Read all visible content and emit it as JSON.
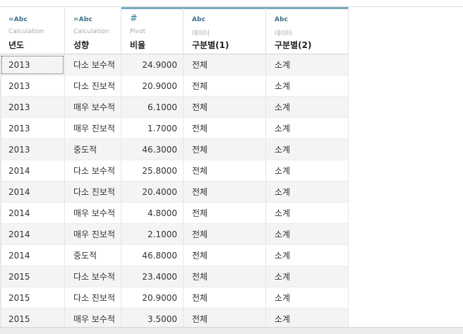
{
  "columns": [
    {
      "type": "=Abc",
      "source": "Calculation",
      "name": "년도"
    },
    {
      "type": "=Abc",
      "source": "Calculation",
      "name": "성향"
    },
    {
      "type": "#",
      "source": "Pivot",
      "name": "비율"
    },
    {
      "type": "Abc",
      "source": "데이터",
      "name": "구분별(1)"
    },
    {
      "type": "Abc",
      "source": "데이터",
      "name": "구분별(2)"
    }
  ],
  "rows": [
    [
      "2013",
      "다소 보수적",
      "24.9000",
      "전체",
      "소계"
    ],
    [
      "2013",
      "다소 진보적",
      "20.9000",
      "전체",
      "소계"
    ],
    [
      "2013",
      "매우 보수적",
      "6.1000",
      "전체",
      "소계"
    ],
    [
      "2013",
      "매우 진보적",
      "1.7000",
      "전체",
      "소계"
    ],
    [
      "2013",
      "중도적",
      "46.3000",
      "전체",
      "소계"
    ],
    [
      "2014",
      "다소 보수적",
      "25.8000",
      "전체",
      "소계"
    ],
    [
      "2014",
      "다소 진보적",
      "20.4000",
      "전체",
      "소계"
    ],
    [
      "2014",
      "매우 보수적",
      "4.8000",
      "전체",
      "소계"
    ],
    [
      "2014",
      "매우 진보적",
      "2.1000",
      "전체",
      "소계"
    ],
    [
      "2014",
      "중도적",
      "46.8000",
      "전체",
      "소계"
    ],
    [
      "2015",
      "다소 보수적",
      "23.4000",
      "전체",
      "소계"
    ],
    [
      "2015",
      "다소 진보적",
      "20.9000",
      "전체",
      "소계"
    ],
    [
      "2015",
      "매우 보수적",
      "3.5000",
      "전체",
      "소계"
    ]
  ]
}
